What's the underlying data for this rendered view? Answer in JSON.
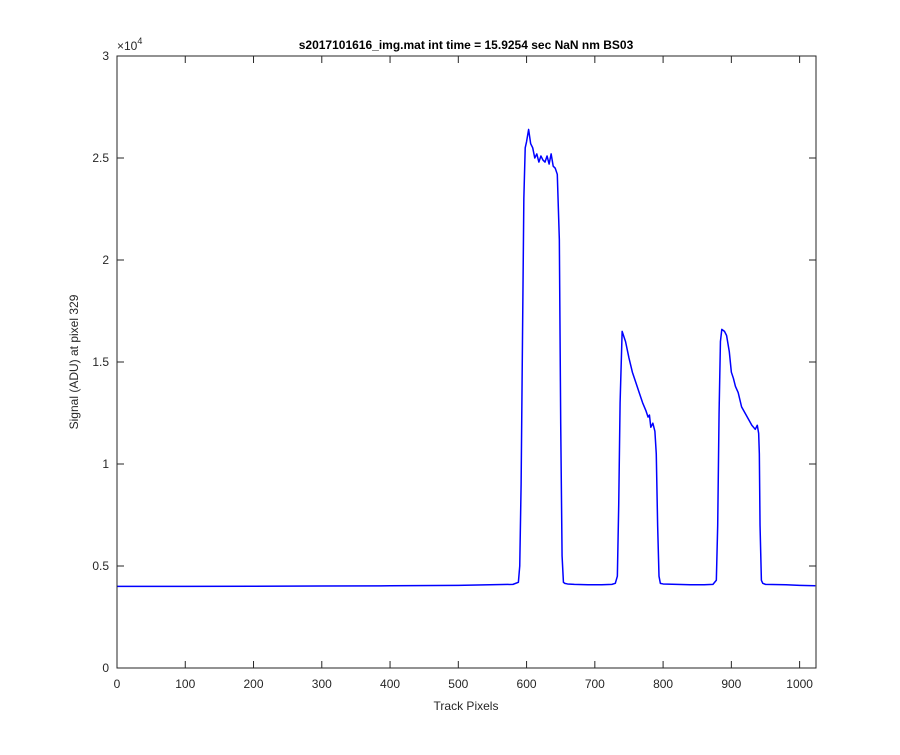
{
  "chart_data": {
    "type": "line",
    "title": "s2017101616_img.mat int time = 15.9254 sec  NaN nm BS03",
    "xlabel": "Track Pixels",
    "ylabel": "Signal (ADU) at pixel 329",
    "xlim": [
      0,
      1024
    ],
    "ylim": [
      0,
      30000
    ],
    "x_ticks": [
      0,
      100,
      200,
      300,
      400,
      500,
      600,
      700,
      800,
      900,
      1000
    ],
    "y_ticks": [
      0,
      5000,
      10000,
      15000,
      20000,
      25000,
      30000
    ],
    "x_tick_labels": [
      "0",
      "100",
      "200",
      "300",
      "400",
      "500",
      "600",
      "700",
      "800",
      "900",
      "1000"
    ],
    "y_tick_labels": [
      "0",
      "0.5",
      "1",
      "1.5",
      "2",
      "2.5",
      "3"
    ],
    "y_exponent_label": "×10",
    "y_exponent_power": "4",
    "grid": false,
    "line_color": "#0000ff",
    "series": [
      {
        "x": [
          0,
          100,
          200,
          300,
          400,
          500,
          580,
          588,
          590,
          592,
          594,
          596,
          598,
          600,
          603,
          606,
          609,
          612,
          615,
          618,
          621,
          624,
          627,
          630,
          633,
          636,
          639,
          642,
          645,
          648,
          650,
          652,
          654,
          656,
          660,
          670,
          690,
          710,
          725,
          730,
          733,
          735,
          737,
          740,
          745,
          750,
          755,
          760,
          765,
          770,
          775,
          778,
          780,
          782,
          785,
          788,
          790,
          792,
          794,
          796,
          800,
          820,
          840,
          860,
          873,
          878,
          880,
          882,
          884,
          886,
          890,
          893,
          897,
          900,
          903,
          906,
          910,
          915,
          920,
          925,
          930,
          935,
          938,
          940,
          941,
          942,
          944,
          946,
          950,
          980,
          1000,
          1023
        ],
        "y": [
          4000,
          4000,
          4010,
          4020,
          4030,
          4050,
          4100,
          4200,
          5000,
          9000,
          16000,
          23000,
          25500,
          25800,
          26400,
          25700,
          25500,
          25000,
          25200,
          24800,
          25100,
          24900,
          24800,
          25100,
          24700,
          25200,
          24600,
          24500,
          24200,
          21000,
          12000,
          5500,
          4200,
          4150,
          4120,
          4100,
          4080,
          4080,
          4100,
          4150,
          4500,
          8000,
          13000,
          16500,
          16000,
          15200,
          14500,
          14000,
          13500,
          13000,
          12600,
          12300,
          12400,
          11800,
          12000,
          11600,
          10500,
          7000,
          4500,
          4150,
          4120,
          4100,
          4080,
          4080,
          4100,
          4300,
          7000,
          12500,
          16000,
          16600,
          16500,
          16300,
          15500,
          14500,
          14200,
          13800,
          13500,
          12800,
          12500,
          12200,
          11900,
          11700,
          11900,
          11500,
          10500,
          7000,
          4300,
          4150,
          4100,
          4080,
          4050,
          4030
        ]
      }
    ]
  }
}
